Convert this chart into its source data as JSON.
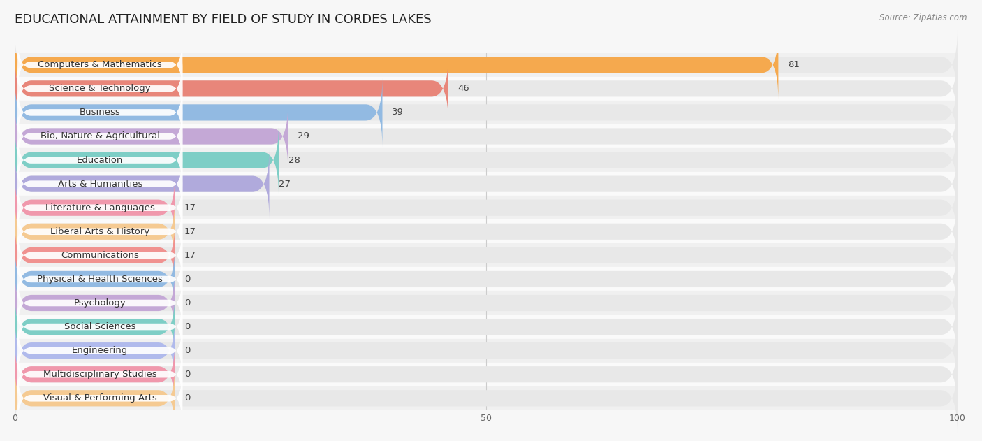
{
  "title": "EDUCATIONAL ATTAINMENT BY FIELD OF STUDY IN CORDES LAKES",
  "source": "Source: ZipAtlas.com",
  "categories": [
    "Computers & Mathematics",
    "Science & Technology",
    "Business",
    "Bio, Nature & Agricultural",
    "Education",
    "Arts & Humanities",
    "Literature & Languages",
    "Liberal Arts & History",
    "Communications",
    "Physical & Health Sciences",
    "Psychology",
    "Social Sciences",
    "Engineering",
    "Multidisciplinary Studies",
    "Visual & Performing Arts"
  ],
  "values": [
    81,
    46,
    39,
    29,
    28,
    27,
    17,
    17,
    17,
    0,
    0,
    0,
    0,
    0,
    0
  ],
  "bar_colors": [
    "#F5A94E",
    "#E8867A",
    "#92BAE2",
    "#C4A8D6",
    "#7ECEC6",
    "#B0AADC",
    "#F098AC",
    "#F5CA92",
    "#F09290",
    "#92BAE2",
    "#C4A8D6",
    "#7ECEC6",
    "#B0BAEC",
    "#F098AC",
    "#F5CA92"
  ],
  "xlim": [
    0,
    100
  ],
  "background_color": "#f7f7f7",
  "bar_background_color": "#e8e8e8",
  "row_colors": [
    "#f0f0f0",
    "#fafafa"
  ],
  "title_fontsize": 13,
  "label_fontsize": 9.5,
  "value_fontsize": 9.5
}
